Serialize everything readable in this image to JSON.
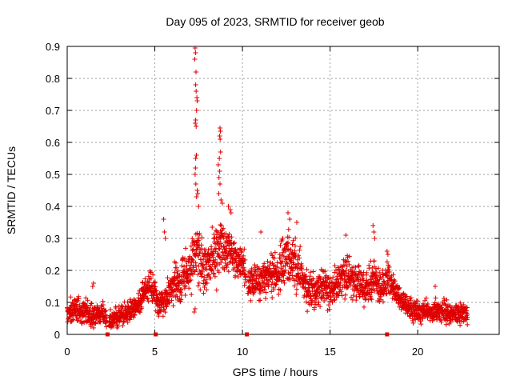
{
  "chart_data": {
    "type": "scatter",
    "title": "Day 095 of 2023, SRMTID for receiver geob",
    "xlabel": "GPS time / hours",
    "ylabel": "SRMTID / TECUs",
    "xlim": [
      0,
      24.65
    ],
    "ylim": [
      0,
      0.9
    ],
    "xticks": [
      0,
      5,
      10,
      15,
      20
    ],
    "yticks": [
      0,
      0.1,
      0.2,
      0.3,
      0.4,
      0.5,
      0.6,
      0.7,
      0.8,
      0.9
    ],
    "xtick_labels": [
      "0",
      "5",
      "10",
      "15",
      "20"
    ],
    "ytick_labels": [
      "0",
      "0.1",
      "0.2",
      "0.3",
      "0.4",
      "0.5",
      "0.6",
      "0.7",
      "0.8",
      "0.9"
    ],
    "grid": true,
    "marker": "plus",
    "color": "#e00000",
    "gap_markers_x": [
      2.3,
      5.05,
      10.25,
      18.25
    ],
    "series": [
      {
        "name": "SRMTID",
        "envelope": {
          "x": [
            0,
            0.5,
            1,
            1.5,
            2,
            2.4,
            3,
            3.5,
            4,
            4.5,
            4.8,
            5.2,
            5.5,
            6,
            6.5,
            7,
            7.2,
            7.4,
            7.6,
            8,
            8.5,
            8.8,
            9,
            9.5,
            10,
            10.3,
            10.8,
            11.5,
            12,
            12.5,
            13,
            13.5,
            14,
            14.5,
            15,
            15.5,
            16,
            16.5,
            17,
            17.5,
            18,
            18.3,
            18.6,
            19,
            19.5,
            20,
            20.5,
            21,
            21.5,
            22,
            22.5,
            22.85
          ],
          "y": [
            0.07,
            0.075,
            0.07,
            0.06,
            0.065,
            0.045,
            0.055,
            0.065,
            0.09,
            0.14,
            0.15,
            0.1,
            0.11,
            0.15,
            0.17,
            0.19,
            0.24,
            0.26,
            0.24,
            0.2,
            0.25,
            0.29,
            0.27,
            0.25,
            0.22,
            0.15,
            0.16,
            0.18,
            0.19,
            0.24,
            0.22,
            0.16,
            0.13,
            0.15,
            0.14,
            0.16,
            0.18,
            0.16,
            0.15,
            0.18,
            0.14,
            0.19,
            0.15,
            0.11,
            0.08,
            0.07,
            0.07,
            0.075,
            0.07,
            0.065,
            0.065,
            0.06
          ],
          "spread": [
            0.035,
            0.035,
            0.035,
            0.035,
            0.03,
            0.025,
            0.03,
            0.03,
            0.035,
            0.04,
            0.04,
            0.035,
            0.045,
            0.05,
            0.06,
            0.06,
            0.08,
            0.08,
            0.08,
            0.07,
            0.08,
            0.07,
            0.07,
            0.05,
            0.05,
            0.05,
            0.05,
            0.05,
            0.06,
            0.07,
            0.07,
            0.06,
            0.05,
            0.05,
            0.05,
            0.05,
            0.06,
            0.05,
            0.05,
            0.06,
            0.05,
            0.05,
            0.04,
            0.03,
            0.03,
            0.03,
            0.03,
            0.03,
            0.03,
            0.03,
            0.03,
            0.03
          ]
        },
        "gaps": [
          [
            2.25,
            2.38
          ],
          [
            10.2,
            10.3
          ]
        ],
        "points_per_hour": 110,
        "peaks": [
          {
            "x": 7.3,
            "y": 0.895
          },
          {
            "x": 7.32,
            "y": 0.88
          },
          {
            "x": 7.28,
            "y": 0.86
          },
          {
            "x": 7.35,
            "y": 0.82
          },
          {
            "x": 7.33,
            "y": 0.78
          },
          {
            "x": 7.36,
            "y": 0.76
          },
          {
            "x": 7.42,
            "y": 0.73
          },
          {
            "x": 7.4,
            "y": 0.74
          },
          {
            "x": 7.38,
            "y": 0.7
          },
          {
            "x": 7.33,
            "y": 0.67
          },
          {
            "x": 7.36,
            "y": 0.65
          },
          {
            "x": 7.31,
            "y": 0.66
          },
          {
            "x": 7.37,
            "y": 0.56
          },
          {
            "x": 7.33,
            "y": 0.55
          },
          {
            "x": 7.32,
            "y": 0.52
          },
          {
            "x": 7.3,
            "y": 0.5
          },
          {
            "x": 7.34,
            "y": 0.47
          },
          {
            "x": 7.38,
            "y": 0.43
          },
          {
            "x": 7.42,
            "y": 0.45
          },
          {
            "x": 7.45,
            "y": 0.44
          },
          {
            "x": 7.5,
            "y": 0.4
          },
          {
            "x": 8.72,
            "y": 0.645
          },
          {
            "x": 8.74,
            "y": 0.635
          },
          {
            "x": 8.7,
            "y": 0.62
          },
          {
            "x": 8.73,
            "y": 0.61
          },
          {
            "x": 8.75,
            "y": 0.57
          },
          {
            "x": 8.68,
            "y": 0.55
          },
          {
            "x": 8.62,
            "y": 0.53
          },
          {
            "x": 8.7,
            "y": 0.51
          },
          {
            "x": 8.66,
            "y": 0.49
          },
          {
            "x": 8.72,
            "y": 0.47
          },
          {
            "x": 8.65,
            "y": 0.44
          },
          {
            "x": 8.78,
            "y": 0.42
          },
          {
            "x": 8.85,
            "y": 0.41
          },
          {
            "x": 9.2,
            "y": 0.4
          },
          {
            "x": 9.3,
            "y": 0.39
          },
          {
            "x": 9.35,
            "y": 0.38
          },
          {
            "x": 5.5,
            "y": 0.36
          },
          {
            "x": 5.55,
            "y": 0.32
          },
          {
            "x": 5.6,
            "y": 0.3
          },
          {
            "x": 12.6,
            "y": 0.38
          },
          {
            "x": 12.7,
            "y": 0.36
          },
          {
            "x": 13.1,
            "y": 0.35
          },
          {
            "x": 12.3,
            "y": 0.3
          },
          {
            "x": 17.45,
            "y": 0.34
          },
          {
            "x": 17.5,
            "y": 0.32
          },
          {
            "x": 17.55,
            "y": 0.3
          },
          {
            "x": 18.25,
            "y": 0.26
          },
          {
            "x": 18.3,
            "y": 0.25
          },
          {
            "x": 15.9,
            "y": 0.31
          },
          {
            "x": 11.05,
            "y": 0.32
          },
          {
            "x": 1.5,
            "y": 0.16
          },
          {
            "x": 1.45,
            "y": 0.15
          },
          {
            "x": 21.0,
            "y": 0.15
          },
          {
            "x": 7.3,
            "y": 0.08
          },
          {
            "x": 7.25,
            "y": 0.07
          }
        ]
      }
    ]
  }
}
